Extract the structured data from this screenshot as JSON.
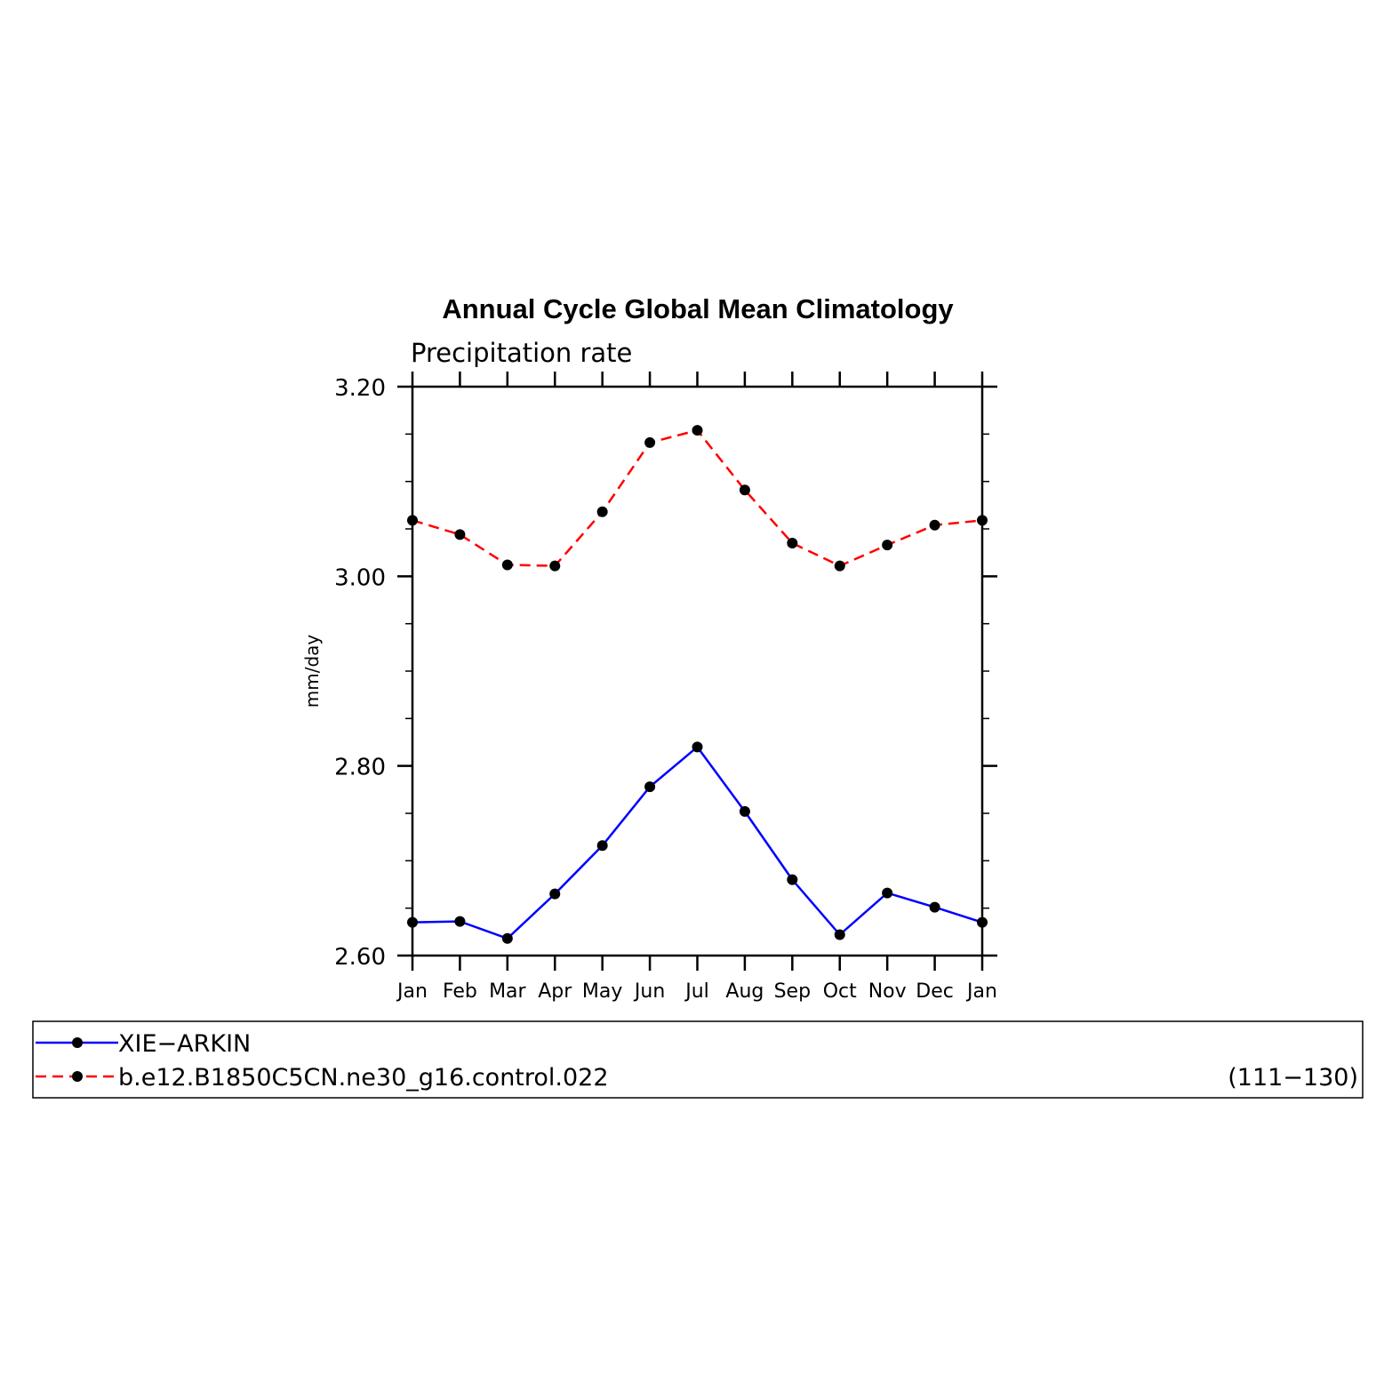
{
  "chart_data": {
    "type": "line",
    "title": "Annual Cycle Global Mean Climatology",
    "subtitle": "Precipitation rate",
    "ylabel": "mm/day",
    "xlabel": "",
    "categories": [
      "Jan",
      "Feb",
      "Mar",
      "Apr",
      "May",
      "Jun",
      "Jul",
      "Aug",
      "Sep",
      "Oct",
      "Nov",
      "Dec",
      "Jan"
    ],
    "ylim": [
      2.6,
      3.2
    ],
    "yticks": [
      "2.60",
      "2.80",
      "3.00",
      "3.20"
    ],
    "ymajor": [
      2.6,
      2.8,
      3.0,
      3.2
    ],
    "yminor_step": 0.05,
    "series": [
      {
        "name": "XIE−ARKIN",
        "color": "#0000ff",
        "dash": "solid",
        "values": [
          2.635,
          2.636,
          2.618,
          2.665,
          2.716,
          2.778,
          2.82,
          2.752,
          2.68,
          2.622,
          2.666,
          2.651,
          2.635
        ]
      },
      {
        "name": "b.e12.B1850C5CN.ne30_g16.control.022",
        "color": "#ff0000",
        "dash": "dashed",
        "values": [
          3.059,
          3.044,
          3.012,
          3.011,
          3.068,
          3.141,
          3.154,
          3.091,
          3.035,
          3.011,
          3.033,
          3.054,
          3.059
        ]
      }
    ],
    "legend": {
      "placement": "bottom",
      "entries": [
        {
          "label": "XIE−ARKIN",
          "note": ""
        },
        {
          "label": "b.e12.B1850C5CN.ne30_g16.control.022",
          "note": "(111−130)"
        }
      ]
    },
    "grid": false
  }
}
